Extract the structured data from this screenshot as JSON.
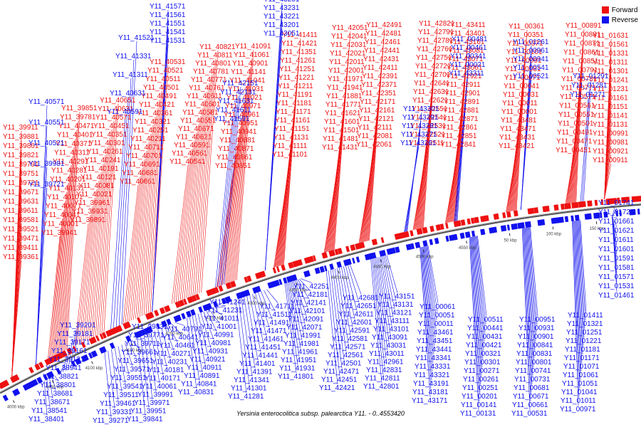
{
  "caption": "Yersinia enterocolitica subsp. palearctica Y11. - 0..4553420",
  "legend": [
    {
      "label": "Forward",
      "color": "#ee1111"
    },
    {
      "label": "Reverse",
      "color": "#1111ee"
    }
  ],
  "colors": {
    "forward": "#ee1111",
    "reverse": "#1111ee",
    "backbone": "#666666"
  },
  "ticks": [
    "4000 kbp",
    "4050 kbp",
    "4100 kbp",
    "4150 kbp",
    "4200 kbp",
    "4250 kbp",
    "4300 kbp",
    "4350 kbp",
    "4400 kbp",
    "4450 kbp",
    "4500 kbp",
    "4550 kbp",
    "50 kbp",
    "100 kbp",
    "150 kbp"
  ],
  "forward_labels": [
    "Y11_39361",
    "Y11_39411",
    "Y11_39471",
    "Y11_39521",
    "Y11_39581",
    "Y11_39611",
    "Y11_39631",
    "Y11_39671",
    "Y11_39721",
    "Y11_39751",
    "Y11_39791",
    "Y11_39821",
    "Y11_39861",
    "Y11_39881",
    "Y11_39911",
    "Y11_39941",
    "Y11_40001",
    "Y11_40041",
    "Y11_40071",
    "Y11_40101",
    "Y11_40131",
    "Y11_40201",
    "Y11_40281",
    "Y11_40291",
    "Y11_40311",
    "Y11_40371",
    "Y11_40401",
    "Y11_40471",
    "Y11_39781",
    "Y11_39851",
    "Y11_39891",
    "Y11_39931",
    "Y11_39961",
    "Y11_40021",
    "Y11_40081",
    "Y11_40121",
    "Y11_40191",
    "Y11_40241",
    "Y11_40261",
    "Y11_40301",
    "Y11_40351",
    "Y11_40451",
    "Y11_40571",
    "Y11_40631",
    "Y11_40651",
    "Y11_40661",
    "Y11_40681",
    "Y11_40691",
    "Y11_40701",
    "Y11_40711",
    "Y11_40211",
    "Y11_40251",
    "Y11_40321",
    "Y11_40361",
    "Y11_40421",
    "Y11_40491",
    "Y11_40501",
    "Y11_40511",
    "Y11_40521",
    "Y11_40531",
    "Y11_40541",
    "Y11_40561",
    "Y11_40591",
    "Y11_40621",
    "Y11_40671",
    "Y11_40551",
    "Y11_40581",
    "Y11_40601",
    "Y11_40611",
    "Y11_40761",
    "Y11_40771",
    "Y11_40781",
    "Y11_40801",
    "Y11_40811",
    "Y11_40821",
    "Y11_40851",
    "Y11_40861",
    "Y11_40871",
    "Y11_40881",
    "Y11_40941",
    "Y11_40951",
    "Y11_40961",
    "Y11_40971",
    "Y11_41021",
    "Y11_41031",
    "Y11_41041",
    "Y11_41141",
    "Y11_40901",
    "Y11_41061",
    "Y11_41091",
    "Y11_41101",
    "Y11_41111",
    "Y11_41131",
    "Y11_41151",
    "Y11_41161",
    "Y11_41171",
    "Y11_41181",
    "Y11_41191",
    "Y11_41211",
    "Y11_41221",
    "Y11_41251",
    "Y11_41261",
    "Y11_41351",
    "Y11_41421",
    "Y11_41411",
    "Y11_41431",
    "Y11_41481",
    "Y11_41501",
    "Y11_41601",
    "Y11_41621",
    "Y11_41771",
    "Y11_41881",
    "Y11_41941",
    "Y11_41971",
    "Y11_42001",
    "Y11_42011",
    "Y11_42021",
    "Y11_42031",
    "Y11_42041",
    "Y11_42051",
    "Y11_42061",
    "Y11_42081",
    "Y11_42111",
    "Y11_42121",
    "Y11_42161",
    "Y11_42171",
    "Y11_42351",
    "Y11_42371",
    "Y11_42391",
    "Y11_42411",
    "Y11_42431",
    "Y11_42441",
    "Y11_42461",
    "Y11_42481",
    "Y11_42491",
    "Y11_42511",
    "Y11_42521",
    "Y11_42531",
    "Y11_42541",
    "Y11_42551",
    "Y11_42621",
    "Y11_42631",
    "Y11_42641",
    "Y11_42701",
    "Y11_42721",
    "Y11_42751",
    "Y11_42761",
    "Y11_42781",
    "Y11_42791",
    "Y11_42821",
    "Y11_42841",
    "Y11_42851",
    "Y11_42861",
    "Y11_42871",
    "Y11_42881",
    "Y11_42891",
    "Y11_42901",
    "Y11_42911",
    "Y11_42921",
    "Y11_43061",
    "Y11_43071",
    "Y11_43081",
    "Y11_43161",
    "Y11_43401",
    "Y11_43411",
    "Y11_43421",
    "Y11_43431",
    "Y11_43471",
    "Y11_43481",
    "Y11_00001",
    "Y11_00011",
    "Y11_00031",
    "Y11_00041",
    "Y11_00071",
    "Y11_00081",
    "Y11_00091",
    "Y11_00101",
    "Y11_00371",
    "Y11_00351",
    "Y11_00361",
    "Y11_00451",
    "Y11_00471",
    "Y11_00491",
    "Y11_00501",
    "Y11_00551",
    "Y11_00561",
    "Y11_00571",
    "Y11_00771",
    "Y11_00781",
    "Y11_00791",
    "Y11_00851",
    "Y11_00861",
    "Y11_00871",
    "Y11_00881",
    "Y11_00891",
    "Y11_00911",
    "Y11_00921",
    "Y11_00981",
    "Y11_00991",
    "Y11_01131",
    "Y11_01141",
    "Y11_01151",
    "Y11_01161",
    "Y11_01231",
    "Y11_01241",
    "Y11_01301",
    "Y11_01311",
    "Y11_01331",
    "Y11_01561",
    "Y11_01631"
  ],
  "forward_blue_labels": [
    "Y11_39721",
    "Y11_39981",
    "Y11_40521",
    "Y11_40551",
    "Y11_40571",
    "Y11_40591",
    "Y11_40631",
    "Y11_41311",
    "Y11_41331",
    "Y11_41521",
    "Y11_41531",
    "Y11_41541",
    "Y11_41551",
    "Y11_41561",
    "Y11_41571",
    "Y11_41591",
    "Y11_41611",
    "Y11_41631",
    "Y11_42131",
    "Y11_42151",
    "Y11_43051",
    "Y11_43201",
    "Y11_43221",
    "Y11_43231",
    "Y11_43251",
    "Y11_43261",
    "Y11_43271",
    "Y11_43281",
    "Y11_43291",
    "Y11_43301",
    "Y11_43311",
    "Y11_00021",
    "Y11_00341",
    "Y11_00461",
    "Y11_00481",
    "Y11_00521",
    "Y11_00541",
    "Y11_00941",
    "Y11_00961",
    "Y11_01261",
    "Y11_01271",
    "Y11_01281",
    "Y11_01291"
  ],
  "reverse_labels": [
    "Y11_38401",
    "Y11_38541",
    "Y11_38671",
    "Y11_38681",
    "Y11_38801",
    "Y11_38821",
    "Y11_38941",
    "Y11_39121",
    "Y11_39161",
    "Y11_39171",
    "Y11_39181",
    "Y11_39201",
    "Y11_39271",
    "Y11_39331",
    "Y11_39461",
    "Y11_39511",
    "Y11_39541",
    "Y11_39551",
    "Y11_39571",
    "Y11_39651",
    "Y11_39661",
    "Y11_39711",
    "Y11_39771",
    "Y11_39831",
    "Y11_39841",
    "Y11_39951",
    "Y11_39971",
    "Y11_39991",
    "Y11_40061",
    "Y11_40171",
    "Y11_40181",
    "Y11_40231",
    "Y11_40271",
    "Y11_40461",
    "Y11_40641",
    "Y11_40791",
    "Y11_40831",
    "Y11_40841",
    "Y11_40891",
    "Y11_40911",
    "Y11_40921",
    "Y11_40931",
    "Y11_40981",
    "Y11_40991",
    "Y11_41001",
    "Y11_41011",
    "Y11_41231",
    "Y11_41241",
    "Y11_41281",
    "Y11_41301",
    "Y11_41341",
    "Y11_41391",
    "Y11_41401",
    "Y11_41441",
    "Y11_41451",
    "Y11_41461",
    "Y11_41471",
    "Y11_41491",
    "Y11_41511",
    "Y11_41711",
    "Y11_41801",
    "Y11_41931",
    "Y11_41951",
    "Y11_41961",
    "Y11_41981",
    "Y11_41991",
    "Y11_42071",
    "Y11_42091",
    "Y11_42101",
    "Y11_42141",
    "Y11_42181",
    "Y11_42251",
    "Y11_42421",
    "Y11_42451",
    "Y11_42471",
    "Y11_42501",
    "Y11_42561",
    "Y11_42571",
    "Y11_42581",
    "Y11_42591",
    "Y11_42601",
    "Y11_42611",
    "Y11_42651",
    "Y11_42681",
    "Y11_42801",
    "Y11_42811",
    "Y11_42831",
    "Y11_42961",
    "Y11_43011",
    "Y11_43031",
    "Y11_43091",
    "Y11_43101",
    "Y11_43111",
    "Y11_43121",
    "Y11_43131",
    "Y11_43151",
    "Y11_43171",
    "Y11_43181",
    "Y11_43191",
    "Y11_43321",
    "Y11_43331",
    "Y11_43341",
    "Y11_43441",
    "Y11_43451",
    "Y11_43461",
    "Y11_00011",
    "Y11_00051",
    "Y11_00061",
    "Y11_00131",
    "Y11_00141",
    "Y11_00201",
    "Y11_00251",
    "Y11_00261",
    "Y11_00271",
    "Y11_00301",
    "Y11_00321",
    "Y11_00421",
    "Y11_00431",
    "Y11_00441",
    "Y11_00511",
    "Y11_00531",
    "Y11_00661",
    "Y11_00671",
    "Y11_00681",
    "Y11_00731",
    "Y11_00741",
    "Y11_00801",
    "Y11_00831",
    "Y11_00841",
    "Y11_00901",
    "Y11_00931",
    "Y11_00951",
    "Y11_00971",
    "Y11_01011",
    "Y11_01041",
    "Y11_01051",
    "Y11_01061",
    "Y11_01071",
    "Y11_01171",
    "Y11_01181",
    "Y11_01221",
    "Y11_01251",
    "Y11_01321",
    "Y11_01411",
    "Y11_01461",
    "Y11_01531",
    "Y11_01571",
    "Y11_01581",
    "Y11_01591",
    "Y11_01601",
    "Y11_01611",
    "Y11_01621",
    "Y11_01661",
    "Y11_01721",
    "Y11_01741"
  ]
}
